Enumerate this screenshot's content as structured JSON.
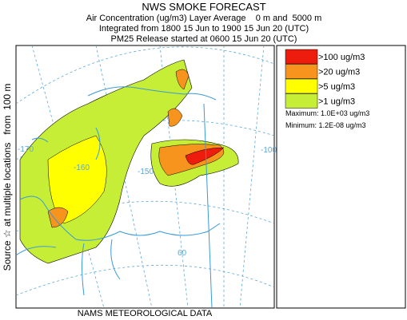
{
  "header": {
    "title": "NWS SMOKE FORECAST",
    "lines": [
      "Air Concentration (ug/m3) Layer Average    0 m and  5000 m",
      "Integrated from 1800 15 Jun to 1900 15 Jun 20 (UTC)",
      "PM25 Release started at 0600 15 Jun 20 (UTC)"
    ]
  },
  "legend": {
    "items": [
      {
        "label": ">100 ug/m3",
        "color": "#ee1c0c"
      },
      {
        "label": ">20 ug/m3",
        "color": "#f7941d"
      },
      {
        "label": ">5 ug/m3",
        "color": "#ffff00"
      },
      {
        "label": ">1 ug/m3",
        "color": "#c6ee36"
      }
    ],
    "maximum": "Maximum: 1.0E+03 ug/m3",
    "minimum": "Minimum: 1.2E-08 ug/m3"
  },
  "side_label": "Source ☆ at multiple locations   from  100 m",
  "footer": "NAMS METEOROLOGICAL DATA",
  "map": {
    "labels": [
      "-170",
      "-160",
      "-150",
      "-100",
      "60"
    ]
  }
}
